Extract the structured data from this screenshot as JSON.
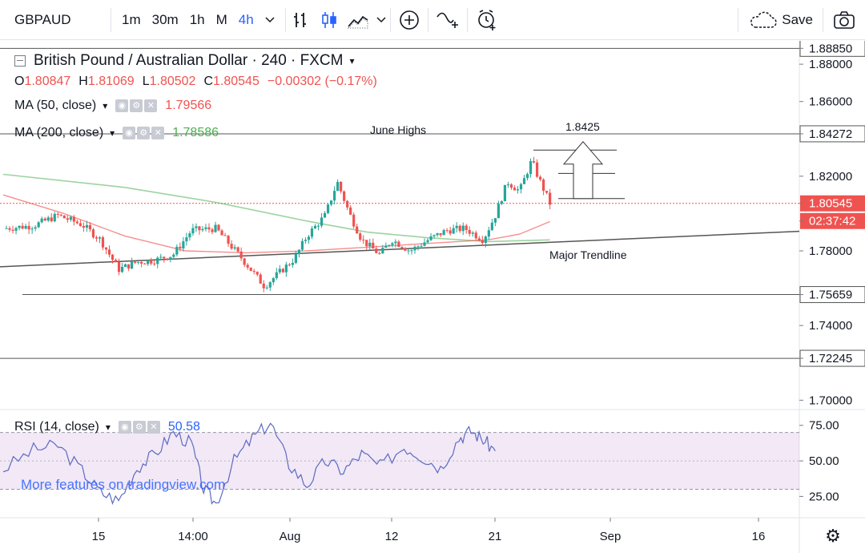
{
  "toolbar": {
    "symbol": "GBPAUD",
    "intervals": [
      "1m",
      "30m",
      "1h",
      "M",
      "4h"
    ],
    "active_interval": "4h",
    "save_label": "Save",
    "icons": [
      "chevron-down-icon",
      "bar-chart-icon",
      "candle-chart-icon",
      "area-chart-icon",
      "chevron-down-icon",
      "add-indicator-icon",
      "compare-icon",
      "alert-icon",
      "cloud-save-icon",
      "camera-icon"
    ]
  },
  "legend": {
    "title": "British Pound / Australian Dollar · 240 · FXCM",
    "ohlc": {
      "o_label": "O",
      "o": "1.80847",
      "h_label": "H",
      "h": "1.81069",
      "l_label": "L",
      "l": "1.80502",
      "c_label": "C",
      "c": "1.80545",
      "change": "−0.00302 (−0.17%)"
    },
    "ma50": {
      "label": "MA (50, close)",
      "value": "1.79566",
      "color": "#ef5350"
    },
    "ma200": {
      "label": "MA (200, close)",
      "value": "1.78586",
      "color": "#4caf50"
    },
    "rsi": {
      "label": "RSI (14, close)",
      "value": "50.58",
      "color": "#2962ff"
    }
  },
  "watermark": "More features on tradingview.com",
  "annotations": {
    "june_highs": "June Highs",
    "target": "1.8425",
    "trendline": "Major Trendline"
  },
  "price_axis": {
    "labels": [
      "1.88850",
      "1.88000",
      "1.86000",
      "1.84272",
      "1.82000",
      "1.80545",
      "02:37:42",
      "1.78000",
      "1.75659",
      "1.74000",
      "1.72245",
      "1.70000"
    ]
  },
  "rsi_axis": {
    "labels": [
      "75.00",
      "50.00",
      "25.00"
    ]
  },
  "time_axis": {
    "labels": [
      "15",
      "14:00",
      "Aug",
      "12",
      "21",
      "Sep",
      "16"
    ]
  },
  "chart_data": {
    "type": "candlestick",
    "symbol": "GBPAUD",
    "timeframe": "240",
    "price_range": [
      1.695,
      1.8925
    ],
    "horizontal_levels": [
      1.8885,
      1.84272,
      1.75659,
      1.72245
    ],
    "last_price": 1.80545,
    "ohlc_last": {
      "open": 1.80847,
      "high": 1.81069,
      "low": 1.80502,
      "close": 1.80545
    },
    "price_series": [
      {
        "x": 0,
        "y": 1.792
      },
      {
        "x": 0.05,
        "y": 1.7935
      },
      {
        "x": 0.09,
        "y": 1.799
      },
      {
        "x": 0.13,
        "y": 1.794
      },
      {
        "x": 0.16,
        "y": 1.786
      },
      {
        "x": 0.19,
        "y": 1.77
      },
      {
        "x": 0.22,
        "y": 1.774
      },
      {
        "x": 0.25,
        "y": 1.775
      },
      {
        "x": 0.28,
        "y": 1.778
      },
      {
        "x": 0.31,
        "y": 1.791
      },
      {
        "x": 0.35,
        "y": 1.792
      },
      {
        "x": 0.39,
        "y": 1.777
      },
      {
        "x": 0.43,
        "y": 1.761
      },
      {
        "x": 0.46,
        "y": 1.77
      },
      {
        "x": 0.48,
        "y": 1.776
      },
      {
        "x": 0.5,
        "y": 1.788
      },
      {
        "x": 0.53,
        "y": 1.799
      },
      {
        "x": 0.55,
        "y": 1.817
      },
      {
        "x": 0.57,
        "y": 1.8
      },
      {
        "x": 0.59,
        "y": 1.786
      },
      {
        "x": 0.62,
        "y": 1.778
      },
      {
        "x": 0.64,
        "y": 1.786
      },
      {
        "x": 0.67,
        "y": 1.78
      },
      {
        "x": 0.7,
        "y": 1.786
      },
      {
        "x": 0.73,
        "y": 1.791
      },
      {
        "x": 0.76,
        "y": 1.792
      },
      {
        "x": 0.79,
        "y": 1.786
      },
      {
        "x": 0.81,
        "y": 1.799
      },
      {
        "x": 0.83,
        "y": 1.817
      },
      {
        "x": 0.85,
        "y": 1.812
      },
      {
        "x": 0.87,
        "y": 1.8285
      },
      {
        "x": 0.88,
        "y": 1.82
      },
      {
        "x": 0.9,
        "y": 1.8055
      }
    ],
    "ma50_series": [
      {
        "x": 0,
        "y": 1.81
      },
      {
        "x": 0.1,
        "y": 1.8
      },
      {
        "x": 0.2,
        "y": 1.788
      },
      {
        "x": 0.3,
        "y": 1.78
      },
      {
        "x": 0.4,
        "y": 1.779
      },
      {
        "x": 0.5,
        "y": 1.78
      },
      {
        "x": 0.6,
        "y": 1.782
      },
      {
        "x": 0.7,
        "y": 1.784
      },
      {
        "x": 0.8,
        "y": 1.786
      },
      {
        "x": 0.85,
        "y": 1.789
      },
      {
        "x": 0.9,
        "y": 1.7957
      }
    ],
    "ma200_series": [
      {
        "x": 0,
        "y": 1.821
      },
      {
        "x": 0.2,
        "y": 1.814
      },
      {
        "x": 0.35,
        "y": 1.806
      },
      {
        "x": 0.5,
        "y": 1.796
      },
      {
        "x": 0.6,
        "y": 1.79
      },
      {
        "x": 0.7,
        "y": 1.787
      },
      {
        "x": 0.8,
        "y": 1.785
      },
      {
        "x": 0.9,
        "y": 1.7859
      }
    ],
    "trendline": {
      "x": [
        0,
        1
      ],
      "y": [
        1.7715,
        1.7905
      ]
    },
    "rsi": {
      "range": [
        10,
        85
      ],
      "bands": [
        30,
        70
      ],
      "series": [
        {
          "x": 0,
          "y": 44
        },
        {
          "x": 0.05,
          "y": 58
        },
        {
          "x": 0.09,
          "y": 61
        },
        {
          "x": 0.13,
          "y": 43
        },
        {
          "x": 0.16,
          "y": 28
        },
        {
          "x": 0.19,
          "y": 22
        },
        {
          "x": 0.22,
          "y": 45
        },
        {
          "x": 0.25,
          "y": 55
        },
        {
          "x": 0.28,
          "y": 70
        },
        {
          "x": 0.31,
          "y": 62
        },
        {
          "x": 0.33,
          "y": 30
        },
        {
          "x": 0.35,
          "y": 20
        },
        {
          "x": 0.38,
          "y": 50
        },
        {
          "x": 0.41,
          "y": 66
        },
        {
          "x": 0.44,
          "y": 77
        },
        {
          "x": 0.47,
          "y": 48
        },
        {
          "x": 0.5,
          "y": 33
        },
        {
          "x": 0.53,
          "y": 50
        },
        {
          "x": 0.56,
          "y": 43
        },
        {
          "x": 0.59,
          "y": 55
        },
        {
          "x": 0.62,
          "y": 46
        },
        {
          "x": 0.66,
          "y": 60
        },
        {
          "x": 0.69,
          "y": 53
        },
        {
          "x": 0.72,
          "y": 45
        },
        {
          "x": 0.75,
          "y": 66
        },
        {
          "x": 0.77,
          "y": 71
        },
        {
          "x": 0.79,
          "y": 65
        },
        {
          "x": 0.81,
          "y": 57
        }
      ]
    }
  }
}
